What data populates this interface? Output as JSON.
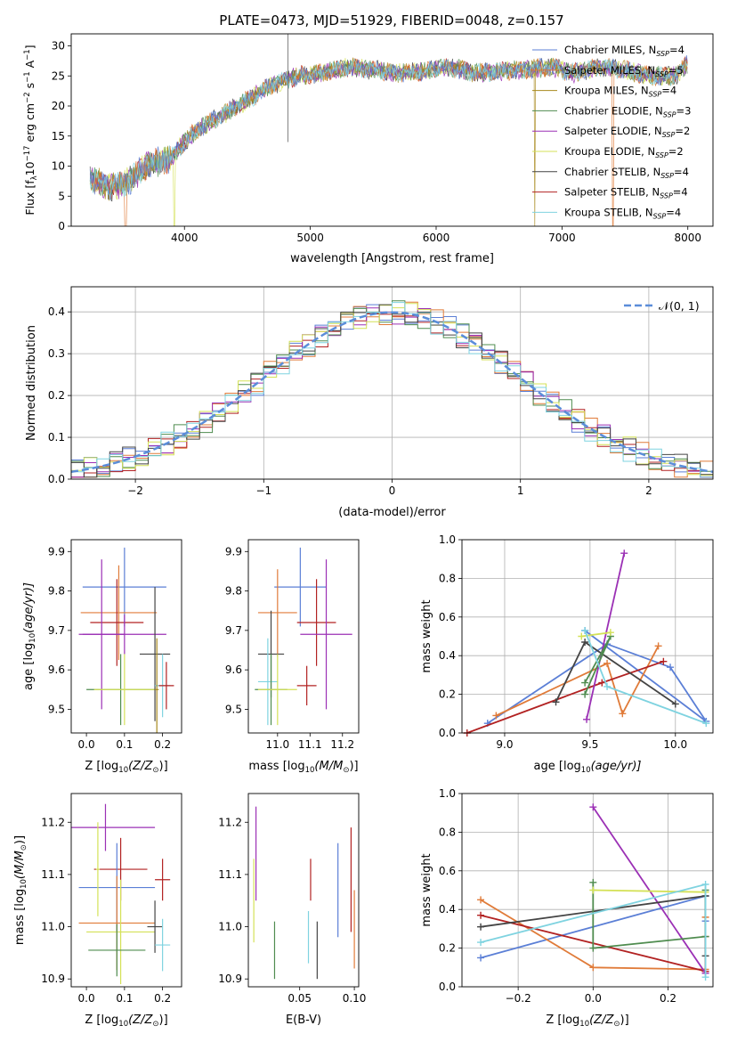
{
  "figure": {
    "title": "PLATE=0473, MJD=51929, FIBERID=0048, z=0.157"
  },
  "series_styles": [
    {
      "name": "Chabrier MILES, N_SSP=4",
      "base": "Chabrier MILES, N",
      "sub": "SSP",
      "tail": "=4",
      "color": "#5b7fd6"
    },
    {
      "name": "Salpeter MILES, N_SSP=5",
      "base": "Salpeter MILES, N",
      "sub": "SSP",
      "tail": "=5",
      "color": "#e07b39"
    },
    {
      "name": "Kroupa MILES, N_SSP=4",
      "base": "Kroupa MILES, N",
      "sub": "SSP",
      "tail": "=4",
      "color": "#a88a1e"
    },
    {
      "name": "Chabrier ELODIE, N_SSP=3",
      "base": "Chabrier ELODIE, N",
      "sub": "SSP",
      "tail": "=3",
      "color": "#4f8c4f"
    },
    {
      "name": "Salpeter ELODIE, N_SSP=2",
      "base": "Salpeter ELODIE, N",
      "sub": "SSP",
      "tail": "=2",
      "color": "#9b30b5"
    },
    {
      "name": "Kroupa ELODIE, N_SSP=2",
      "base": "Kroupa ELODIE, N",
      "sub": "SSP",
      "tail": "=2",
      "color": "#d4e157"
    },
    {
      "name": "Chabrier STELIB, N_SSP=4",
      "base": "Chabrier STELIB, N",
      "sub": "SSP",
      "tail": "=4",
      "color": "#444444"
    },
    {
      "name": "Salpeter STELIB, N_SSP=4",
      "base": "Salpeter STELIB, N",
      "sub": "SSP",
      "tail": "=4",
      "color": "#b22222"
    },
    {
      "name": "Kroupa STELIB, N_SSP=4",
      "base": "Kroupa STELIB, N",
      "sub": "SSP",
      "tail": "=4",
      "color": "#7fd3e0"
    }
  ],
  "chart_data": [
    {
      "id": "spectrum",
      "type": "line",
      "xlabel": "wavelength [Angstrom, rest frame]",
      "ylabel_parts": [
        "Flux [f",
        "λ",
        "10",
        "−17",
        " erg cm",
        "−2",
        " s",
        "−1",
        " A",
        "−1",
        "]"
      ],
      "xlim": [
        3100,
        8200
      ],
      "ylim": [
        0,
        32
      ],
      "xticks": [
        4000,
        5000,
        6000,
        7000,
        8000
      ],
      "yticks": [
        0,
        5,
        10,
        15,
        20,
        25,
        30
      ],
      "legend_position": "top-right",
      "continuum": {
        "x": [
          3250,
          3400,
          3550,
          3700,
          3900,
          4000,
          4100,
          4300,
          4500,
          4700,
          4900,
          5100,
          5300,
          5500,
          5700,
          5900,
          6100,
          6300,
          6500,
          6700,
          6900,
          7100,
          7300,
          7500,
          7700,
          7900,
          8000
        ],
        "y": [
          8,
          6.5,
          7.5,
          10,
          11.5,
          14,
          16,
          18.5,
          21,
          23.5,
          25,
          25.5,
          26.5,
          26,
          25.5,
          25.8,
          26.5,
          25.5,
          25.8,
          26,
          26.5,
          25.5,
          26.5,
          26,
          25,
          25,
          27
        ]
      }
    },
    {
      "id": "residuals",
      "type": "histogram",
      "xlabel": "(data-model)/error",
      "ylabel": "Normed distribution",
      "xlim": [
        -2.5,
        2.5
      ],
      "ylim": [
        0,
        0.46
      ],
      "xticks": [
        -2,
        -1,
        0,
        1,
        2
      ],
      "yticks": [
        0.0,
        0.1,
        0.2,
        0.3,
        0.4
      ],
      "grid": true,
      "legend": "𝒩(0, 1)",
      "legend_position": "top-right",
      "reference_curve": {
        "name": "𝒩(0, 1)",
        "mean": 0,
        "sigma": 1,
        "color": "#5b8dd9"
      }
    },
    {
      "id": "age-vs-Z",
      "type": "errorbar",
      "xlabel_parts": [
        "Z [log",
        "10",
        "(Z/Z",
        "⊙",
        ")]"
      ],
      "ylabel_parts": [
        "age  [log",
        "10",
        "(age/yr)]"
      ],
      "xlim": [
        -0.04,
        0.25
      ],
      "ylim": [
        9.44,
        9.93
      ],
      "xticks": [
        0.0,
        0.1,
        0.2
      ],
      "yticks": [
        9.5,
        9.6,
        9.7,
        9.8,
        9.9
      ],
      "points": [
        {
          "x": 0.1,
          "y": 9.81,
          "xerr": 0.11,
          "yerr": 0.1,
          "series": 0
        },
        {
          "x": 0.085,
          "y": 9.745,
          "xerr": 0.1,
          "yerr": 0.12,
          "series": 1
        },
        {
          "x": 0.08,
          "y": 9.72,
          "xerr": 0.07,
          "yerr": 0.11,
          "series": 7
        },
        {
          "x": 0.04,
          "y": 9.69,
          "xerr": 0.06,
          "yerr": 0.19,
          "series": 4
        },
        {
          "x": 0.1,
          "y": 9.69,
          "xerr": 0.11,
          "yerr": 0.05,
          "series": 4
        },
        {
          "x": 0.09,
          "y": 9.55,
          "xerr": 0.09,
          "yerr": 0.09,
          "series": 3
        },
        {
          "x": 0.1,
          "y": 9.55,
          "xerr": 0.08,
          "yerr": 0.09,
          "series": 5
        },
        {
          "x": 0.18,
          "y": 9.64,
          "xerr": 0.04,
          "yerr": 0.17,
          "series": 6
        },
        {
          "x": 0.2,
          "y": 9.56,
          "xerr": 0.02,
          "yerr": 0.08,
          "series": 8
        },
        {
          "x": 0.21,
          "y": 9.56,
          "xerr": 0.02,
          "yerr": 0.06,
          "series": 7
        },
        {
          "x": 0.185,
          "y": 9.55,
          "xerr": 0.005,
          "yerr": 0.13,
          "series": 2
        }
      ]
    },
    {
      "id": "age-vs-mass",
      "type": "errorbar",
      "xlabel_parts": [
        "mass [log",
        "10",
        "(M/M",
        "⊙",
        ")]"
      ],
      "ylabel_parts": [],
      "xlim": [
        10.91,
        11.25
      ],
      "ylim": [
        9.44,
        9.93
      ],
      "xticks": [
        11.0,
        11.1,
        11.2
      ],
      "yticks": [
        9.5,
        9.6,
        9.7,
        9.8,
        9.9
      ],
      "points": [
        {
          "x": 11.07,
          "y": 9.81,
          "xerr": 0.08,
          "yerr": 0.1,
          "series": 0
        },
        {
          "x": 11.0,
          "y": 9.745,
          "xerr": 0.06,
          "yerr": 0.11,
          "series": 1
        },
        {
          "x": 11.12,
          "y": 9.72,
          "xerr": 0.06,
          "yerr": 0.11,
          "series": 7
        },
        {
          "x": 11.15,
          "y": 9.69,
          "xerr": 0.08,
          "yerr": 0.19,
          "series": 4
        },
        {
          "x": 10.98,
          "y": 9.64,
          "xerr": 0.04,
          "yerr": 0.11,
          "series": 6
        },
        {
          "x": 10.97,
          "y": 9.57,
          "xerr": 0.03,
          "yerr": 0.11,
          "series": 8
        },
        {
          "x": 10.98,
          "y": 9.55,
          "xerr": 0.05,
          "yerr": 0.09,
          "series": 3
        },
        {
          "x": 11.0,
          "y": 9.55,
          "xerr": 0.06,
          "yerr": 0.09,
          "series": 5
        },
        {
          "x": 11.09,
          "y": 9.56,
          "xerr": 0.03,
          "yerr": 0.05,
          "series": 7
        }
      ]
    },
    {
      "id": "weight-vs-age",
      "type": "line",
      "xlabel_parts": [
        "age  [log",
        "10",
        "(age/yr)]"
      ],
      "ylabel": "mass weight",
      "xlim": [
        8.75,
        10.22
      ],
      "ylim": [
        0,
        1.0
      ],
      "xticks": [
        9.0,
        9.5,
        10.0
      ],
      "yticks": [
        0.0,
        0.2,
        0.4,
        0.6,
        0.8,
        1.0
      ],
      "grid": true,
      "series": [
        {
          "style": 0,
          "x": [
            8.9,
            9.6,
            9.97,
            10.18,
            9.47
          ],
          "y": [
            0.05,
            0.46,
            0.34,
            0.06,
            0.53
          ]
        },
        {
          "style": 1,
          "x": [
            8.95,
            9.6,
            9.69,
            9.9
          ],
          "y": [
            0.09,
            0.36,
            0.1,
            0.45
          ]
        },
        {
          "style": 7,
          "x": [
            8.78,
            9.57,
            9.93
          ],
          "y": [
            0.0,
            0.26,
            0.37
          ]
        },
        {
          "style": 4,
          "x": [
            9.48,
            9.7
          ],
          "y": [
            0.07,
            0.93
          ]
        },
        {
          "style": 6,
          "x": [
            9.3,
            9.47,
            10.0
          ],
          "y": [
            0.16,
            0.47,
            0.15
          ]
        },
        {
          "style": 3,
          "x": [
            9.47,
            9.62,
            9.47
          ],
          "y": [
            0.2,
            0.5,
            0.26
          ]
        },
        {
          "style": 5,
          "x": [
            9.45,
            9.62
          ],
          "y": [
            0.5,
            0.52
          ]
        },
        {
          "style": 8,
          "x": [
            9.47,
            9.6,
            10.18
          ],
          "y": [
            0.53,
            0.24,
            0.05
          ]
        }
      ]
    },
    {
      "id": "mass-vs-Z",
      "type": "errorbar",
      "xlabel_parts": [
        "Z [log",
        "10",
        "(Z/Z",
        "⊙",
        ")]"
      ],
      "ylabel_parts": [
        "mass [log",
        "10",
        "(M/M",
        "⊙",
        ")]"
      ],
      "xlim": [
        -0.04,
        0.25
      ],
      "ylim": [
        10.885,
        11.255
      ],
      "xticks": [
        0.0,
        0.1,
        0.2
      ],
      "yticks": [
        10.9,
        11.0,
        11.1,
        11.2
      ],
      "points": [
        {
          "x": 0.05,
          "y": 11.19,
          "xerr": 0.13,
          "yerr": 0.045,
          "series": 4
        },
        {
          "x": 0.09,
          "y": 11.11,
          "xerr": 0.07,
          "yerr": 0.06,
          "series": 7
        },
        {
          "x": 0.08,
          "y": 11.075,
          "xerr": 0.1,
          "yerr": 0.085,
          "series": 0
        },
        {
          "x": 0.2,
          "y": 11.09,
          "xerr": 0.02,
          "yerr": 0.04,
          "series": 7
        },
        {
          "x": 0.08,
          "y": 11.007,
          "xerr": 0.1,
          "yerr": 0.09,
          "series": 1
        },
        {
          "x": 0.09,
          "y": 10.99,
          "xerr": 0.09,
          "yerr": 0.1,
          "series": 5
        },
        {
          "x": 0.18,
          "y": 11.0,
          "xerr": 0.02,
          "yerr": 0.05,
          "series": 6
        },
        {
          "x": 0.08,
          "y": 10.955,
          "xerr": 0.075,
          "yerr": 0.05,
          "series": 3
        },
        {
          "x": 0.2,
          "y": 10.965,
          "xerr": 0.02,
          "yerr": 0.05,
          "series": 8
        },
        {
          "x": 0.03,
          "y": 11.11,
          "xerr": 0.005,
          "yerr": 0.09,
          "series": 5
        }
      ]
    },
    {
      "id": "mass-vs-EBV",
      "type": "errorbar",
      "xlabel": "E(B-V)",
      "ylabel_parts": [],
      "xlim": [
        0.003,
        0.104
      ],
      "ylim": [
        10.885,
        11.255
      ],
      "xticks": [
        0.05,
        0.1
      ],
      "yticks": [
        10.9,
        11.0,
        11.1,
        11.2
      ],
      "points": [
        {
          "x": 0.01,
          "y": 11.14,
          "xerr": 0.0,
          "yerr": 0.09,
          "series": 4
        },
        {
          "x": 0.008,
          "y": 11.05,
          "xerr": 0.0,
          "yerr": 0.08,
          "series": 5
        },
        {
          "x": 0.027,
          "y": 10.955,
          "xerr": 0.0,
          "yerr": 0.055,
          "series": 3
        },
        {
          "x": 0.06,
          "y": 11.09,
          "xerr": 0.0,
          "yerr": 0.04,
          "series": 7
        },
        {
          "x": 0.058,
          "y": 10.98,
          "xerr": 0.0,
          "yerr": 0.05,
          "series": 8
        },
        {
          "x": 0.066,
          "y": 10.955,
          "xerr": 0.0,
          "yerr": 0.055,
          "series": 6
        },
        {
          "x": 0.085,
          "y": 11.07,
          "xerr": 0.0,
          "yerr": 0.09,
          "series": 0
        },
        {
          "x": 0.097,
          "y": 11.09,
          "xerr": 0.0,
          "yerr": 0.1,
          "series": 7
        },
        {
          "x": 0.1,
          "y": 10.995,
          "xerr": 0.0,
          "yerr": 0.075,
          "series": 1
        }
      ]
    },
    {
      "id": "weight-vs-Z",
      "type": "line",
      "xlabel_parts": [
        "Z [log",
        "10",
        "(Z/Z",
        "⊙",
        ")]"
      ],
      "ylabel": "mass weight",
      "xlim": [
        -0.35,
        0.32
      ],
      "ylim": [
        0,
        1.0
      ],
      "xticks": [
        -0.2,
        0.0,
        0.2
      ],
      "yticks": [
        0.0,
        0.2,
        0.4,
        0.6,
        0.8,
        1.0
      ],
      "grid": true,
      "series": [
        {
          "style": 0,
          "x": [
            -0.3,
            0.3,
            0.3
          ],
          "y": [
            0.15,
            0.47,
            0.34
          ]
        },
        {
          "style": 1,
          "x": [
            -0.3,
            0.0,
            0.3,
            0.3
          ],
          "y": [
            0.45,
            0.1,
            0.09,
            0.36
          ]
        },
        {
          "style": 7,
          "x": [
            -0.3,
            0.3,
            0.3
          ],
          "y": [
            0.37,
            0.08,
            0.26
          ]
        },
        {
          "style": 4,
          "x": [
            0.0,
            0.3
          ],
          "y": [
            0.93,
            0.07
          ]
        },
        {
          "style": 6,
          "x": [
            -0.3,
            0.3,
            0.3
          ],
          "y": [
            0.31,
            0.47,
            0.16
          ]
        },
        {
          "style": 3,
          "x": [
            0.0,
            0.0,
            0.3,
            0.3
          ],
          "y": [
            0.54,
            0.2,
            0.26,
            0.5
          ]
        },
        {
          "style": 5,
          "x": [
            0.0,
            0.3
          ],
          "y": [
            0.5,
            0.49
          ]
        },
        {
          "style": 8,
          "x": [
            -0.3,
            0.3,
            0.3
          ],
          "y": [
            0.23,
            0.53,
            0.05
          ]
        }
      ]
    }
  ]
}
